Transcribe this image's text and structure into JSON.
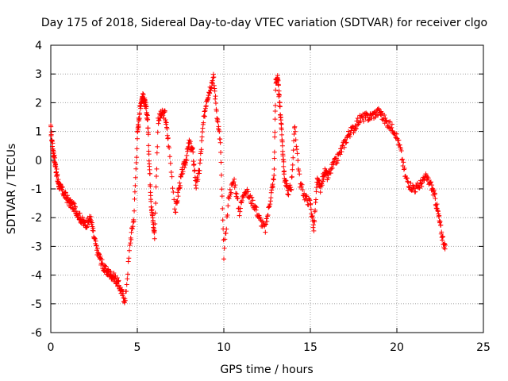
{
  "chart_data": {
    "type": "scatter",
    "title": "Day 175 of 2018, Sidereal Day-to-day VTEC variation (SDTVAR) for receiver clgo",
    "xlabel": "GPS time / hours",
    "ylabel": "SDTVAR / TECUs",
    "xlim": [
      0,
      25
    ],
    "ylim": [
      -6,
      4
    ],
    "xticks": [
      "0",
      "5",
      "10",
      "15",
      "20",
      "25"
    ],
    "yticks": [
      "-6",
      "-5",
      "-4",
      "-3",
      "-2",
      "-1",
      "0",
      "1",
      "2",
      "3",
      "4"
    ],
    "grid": true,
    "marker": "plus",
    "series_color": "#ff0000",
    "series": [
      {
        "name": "SDTVAR",
        "description": "Dense sampled trace, one value per sampled epoch (hours, TECU)",
        "x": [
          0.0,
          0.1,
          0.2,
          0.3,
          0.4,
          0.5,
          0.7,
          0.9,
          1.1,
          1.3,
          1.5,
          1.7,
          1.9,
          2.1,
          2.3,
          2.5,
          2.7,
          2.9,
          3.1,
          3.3,
          3.5,
          3.7,
          3.9,
          4.1,
          4.3,
          4.6,
          4.8,
          5.0,
          5.1,
          5.2,
          5.3,
          5.4,
          5.5,
          5.6,
          5.7,
          5.8,
          5.9,
          6.0,
          6.2,
          6.4,
          6.6,
          6.8,
          7.2,
          7.4,
          7.6,
          7.8,
          8.0,
          8.2,
          8.4,
          8.6,
          8.8,
          9.0,
          9.2,
          9.4,
          9.6,
          9.8,
          10.0,
          10.3,
          10.6,
          10.9,
          11.2,
          11.5,
          11.8,
          12.1,
          12.4,
          12.7,
          12.9,
          13.0,
          13.1,
          13.2,
          13.3,
          13.4,
          13.5,
          13.7,
          13.9,
          14.1,
          14.4,
          14.7,
          15.0,
          15.2,
          15.4,
          15.6,
          15.8,
          16.0,
          16.3,
          16.6,
          16.9,
          17.2,
          17.5,
          17.8,
          18.1,
          18.4,
          18.7,
          19.0,
          19.3,
          19.6,
          19.9,
          20.2,
          20.5,
          20.8,
          21.1,
          21.4,
          21.7,
          22.0,
          22.2,
          22.4,
          22.6,
          22.8
        ],
        "y": [
          1.1,
          0.5,
          0.1,
          -0.3,
          -0.7,
          -0.9,
          -1.1,
          -1.3,
          -1.5,
          -1.6,
          -1.8,
          -2.0,
          -2.2,
          -2.2,
          -2.0,
          -2.7,
          -3.2,
          -3.5,
          -3.8,
          -3.9,
          -4.0,
          -4.1,
          -4.3,
          -4.6,
          -4.9,
          -2.8,
          -2.0,
          0.8,
          1.5,
          2.0,
          2.2,
          2.1,
          1.8,
          1.4,
          -0.2,
          -1.5,
          -2.1,
          -2.6,
          1.4,
          1.6,
          1.6,
          0.6,
          -1.8,
          -1.0,
          -0.4,
          0.0,
          0.6,
          0.3,
          -0.9,
          -0.3,
          1.2,
          2.1,
          2.5,
          2.9,
          1.6,
          0.6,
          -3.3,
          -1.2,
          -0.7,
          -1.8,
          -1.0,
          -1.3,
          -1.6,
          -2.1,
          -2.4,
          -1.3,
          -0.6,
          2.7,
          2.9,
          2.2,
          1.4,
          0.4,
          -0.6,
          -1.1,
          -0.9,
          1.2,
          -0.8,
          -1.3,
          -1.5,
          -2.4,
          -0.7,
          -1.0,
          -0.4,
          -0.6,
          -0.2,
          0.1,
          0.5,
          0.9,
          1.1,
          1.4,
          1.5,
          1.5,
          1.6,
          1.7,
          1.4,
          1.2,
          1.0,
          0.4,
          -0.6,
          -0.9,
          -1.0,
          -0.8,
          -0.6,
          -0.9,
          -1.3,
          -1.9,
          -2.6,
          -3.1
        ]
      }
    ]
  }
}
